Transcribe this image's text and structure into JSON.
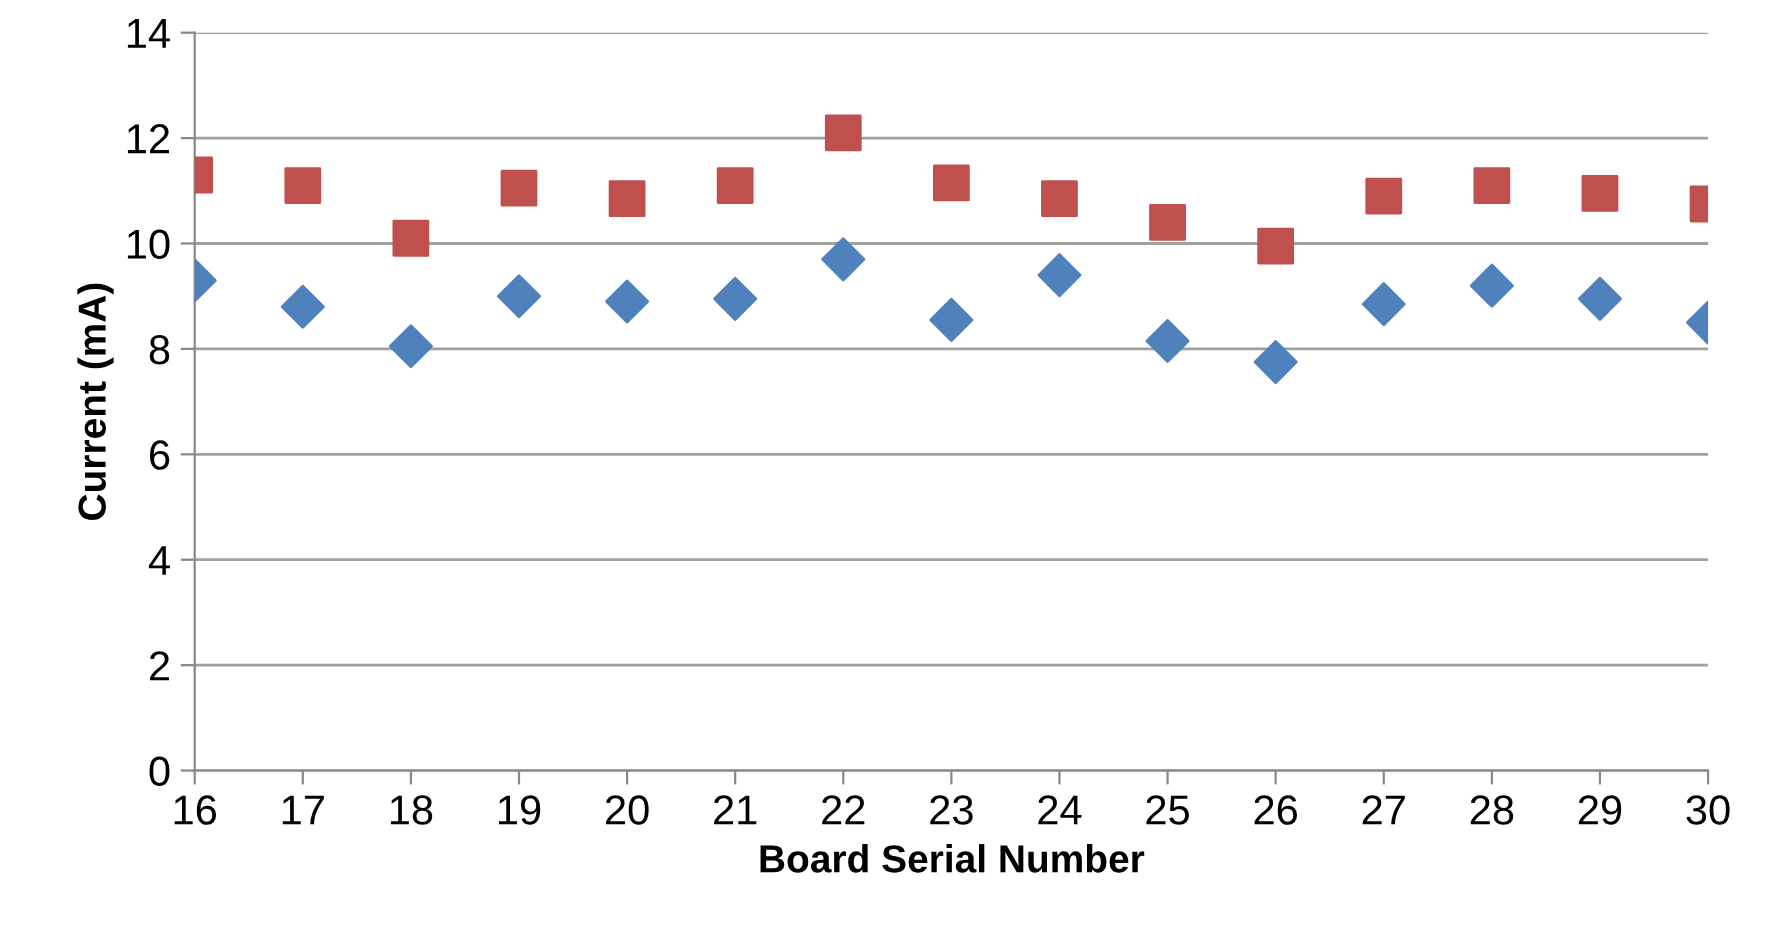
{
  "chart_data": {
    "type": "scatter",
    "xlabel": "Board Serial Number",
    "ylabel": "Current (mA)",
    "x": [
      16,
      17,
      18,
      19,
      20,
      21,
      22,
      23,
      24,
      25,
      26,
      27,
      28,
      29,
      30
    ],
    "xlim": [
      16,
      30
    ],
    "xticks": [
      16,
      17,
      18,
      19,
      20,
      21,
      22,
      23,
      24,
      25,
      26,
      27,
      28,
      29,
      30
    ],
    "ylim": [
      0,
      14
    ],
    "yticks": [
      0,
      2,
      4,
      6,
      8,
      10,
      12,
      14
    ],
    "grid": "y",
    "legend": false,
    "series": [
      {
        "color": "#4f81bd",
        "marker": "diamond",
        "values": [
          9.3,
          8.8,
          8.05,
          9.0,
          8.9,
          8.95,
          9.7,
          8.55,
          9.4,
          8.15,
          7.75,
          8.85,
          9.2,
          8.95,
          8.5
        ]
      },
      {
        "color": "#c0504d",
        "marker": "square",
        "values": [
          11.3,
          11.1,
          10.1,
          11.05,
          10.85,
          11.1,
          12.1,
          11.15,
          10.85,
          10.4,
          9.95,
          10.9,
          11.1,
          10.95,
          10.75
        ]
      }
    ]
  }
}
